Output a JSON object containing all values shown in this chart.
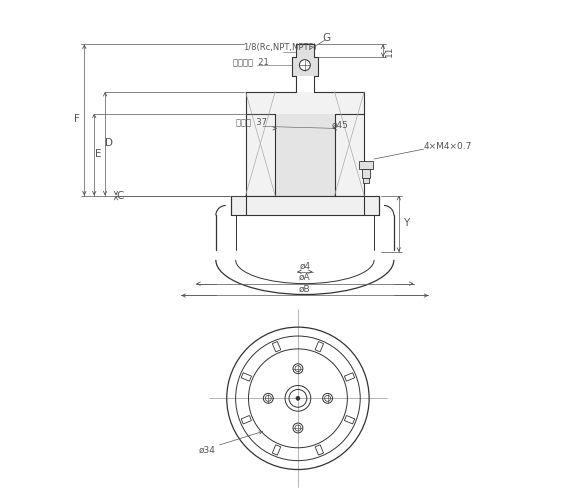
{
  "bg_color": "#ffffff",
  "line_color": "#333333",
  "dim_color": "#555555",
  "gray_fill": "#d0d0d0",
  "light_gray": "#e0e0e0",
  "annotations": {
    "label_G": "G",
    "label_11": "11",
    "label_port": "1/8(Rc,NPT,NPTF)",
    "label_hex21": "六角対辺  21",
    "label_face37": "二面幅  37",
    "label_phi45": "ø45",
    "label_4xM4": "4×M4×0.7",
    "label_F": "F",
    "label_E": "E",
    "label_D": "D",
    "label_C": "C",
    "label_Y": "Y",
    "label_phi4": "ø4",
    "label_phiA": "øA",
    "label_phiB": "øB",
    "label_phi34": "ø34"
  }
}
